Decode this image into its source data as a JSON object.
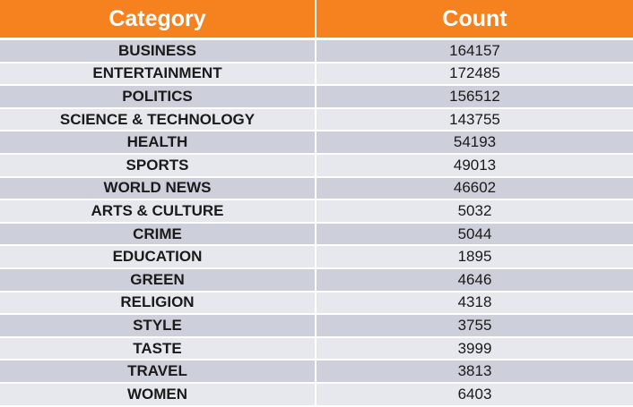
{
  "header": {
    "category_label": "Category",
    "count_label": "Count"
  },
  "colors": {
    "header_bg": "#f5821f",
    "row_dark": "#cdd0db",
    "row_light": "#e7e8ed"
  },
  "rows": [
    {
      "category": "BUSINESS",
      "count": "164157"
    },
    {
      "category": "ENTERTAINMENT",
      "count": "172485"
    },
    {
      "category": "POLITICS",
      "count": "156512"
    },
    {
      "category": "SCIENCE & TECHNOLOGY",
      "count": "143755"
    },
    {
      "category": "HEALTH",
      "count": "54193"
    },
    {
      "category": "SPORTS",
      "count": "49013"
    },
    {
      "category": "WORLD NEWS",
      "count": "46602"
    },
    {
      "category": "ARTS & CULTURE",
      "count": "5032"
    },
    {
      "category": "CRIME",
      "count": "5044"
    },
    {
      "category": "EDUCATION",
      "count": "1895"
    },
    {
      "category": "GREEN",
      "count": "4646"
    },
    {
      "category": "RELIGION",
      "count": "4318"
    },
    {
      "category": "STYLE",
      "count": "3755"
    },
    {
      "category": "TASTE",
      "count": "3999"
    },
    {
      "category": "TRAVEL",
      "count": "3813"
    },
    {
      "category": "WOMEN",
      "count": "6403"
    }
  ]
}
